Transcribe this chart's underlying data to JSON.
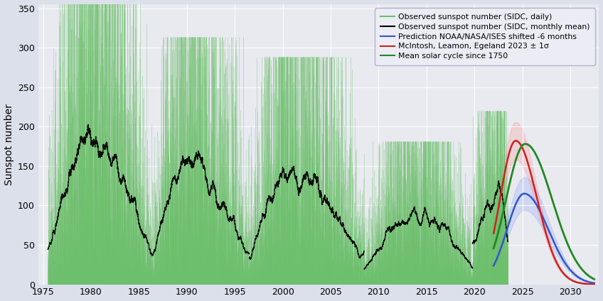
{
  "ylabel": "Sunspot number",
  "xlim": [
    1974.5,
    2033
  ],
  "ylim": [
    0,
    355
  ],
  "yticks": [
    0,
    50,
    100,
    150,
    200,
    250,
    300,
    350
  ],
  "xticks": [
    1975,
    1980,
    1985,
    1990,
    1995,
    2000,
    2005,
    2010,
    2015,
    2020,
    2025,
    2030
  ],
  "bg_color": "#e8eaf0",
  "fig_bg_color": "#dce0eb",
  "legend_labels": [
    "Observed sunspot number (SIDC, daily)",
    "Observed sunspot number (SIDC, monthly mean)",
    "Prediction NOAA/NASA/ISES shifted -6 months",
    "McIntosh, Leamon, Egeland 2023 ± 1σ",
    "Mean solar cycle since 1750"
  ],
  "legend_colors": [
    "#6dbf6d",
    "#000000",
    "#3355cc",
    "#cc2222",
    "#228822"
  ],
  "cycles": [
    {
      "start": 1975.5,
      "peak": 1979.9,
      "peak_val": 220,
      "end": 1986.5,
      "seed": 0
    },
    {
      "start": 1986.5,
      "peak": 1989.9,
      "peak_val": 190,
      "end": 1996.5,
      "seed": 1
    },
    {
      "start": 1996.5,
      "peak": 2000.5,
      "peak_val": 175,
      "end": 2008.5,
      "seed": 2
    },
    {
      "start": 2008.5,
      "peak": 2014.2,
      "peak_val": 110,
      "end": 2019.8,
      "seed": 3
    }
  ],
  "recent_start": 2019.8,
  "recent_peak": 2022.5,
  "recent_peak_val": 150,
  "recent_end": 2023.5,
  "pred_start": 2022.0,
  "pred_end": 2032.5,
  "noaa_peak_year": 2025.2,
  "noaa_peak_val": 115,
  "noaa_sigma_l": 1.8,
  "noaa_sigma_r": 2.5,
  "mc_peak_year": 2024.3,
  "mc_peak_val": 182,
  "mc_sigma_l": 1.6,
  "mc_sigma_r": 2.2,
  "mean_peak_year": 2025.3,
  "mean_peak_val": 178,
  "mean_sigma_l": 2.0,
  "mean_sigma_r": 2.8
}
